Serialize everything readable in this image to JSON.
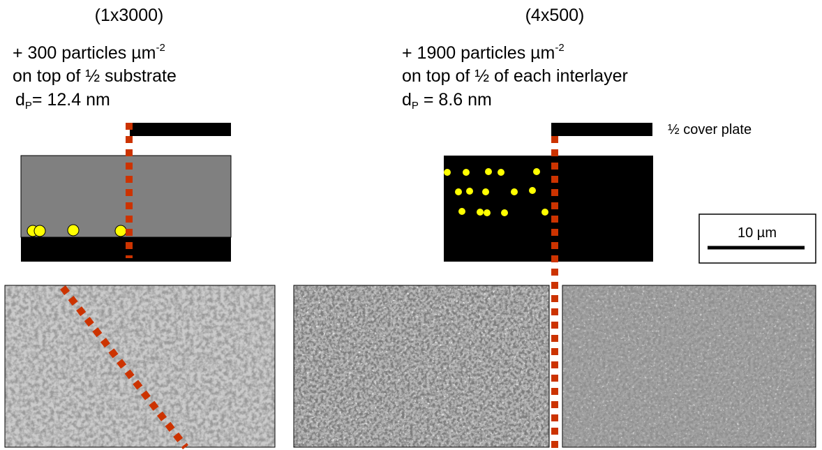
{
  "left": {
    "title": "(1x3000)",
    "density": "+ 300 particles µm",
    "density_exp": "-2",
    "location": "on top of ½ substrate",
    "size_symbol": "d",
    "size_sub": "P",
    "size_value": "= 12.4 nm"
  },
  "right": {
    "title": "(4x500)",
    "density": "+ 1900 particles µm",
    "density_exp": "-2",
    "location": "on top of ½ of each interlayer",
    "size_symbol": "d",
    "size_sub": "P",
    "size_value": " = 8.6 nm"
  },
  "cover_label": "½ cover plate",
  "scale_bar": "10 µm"
}
